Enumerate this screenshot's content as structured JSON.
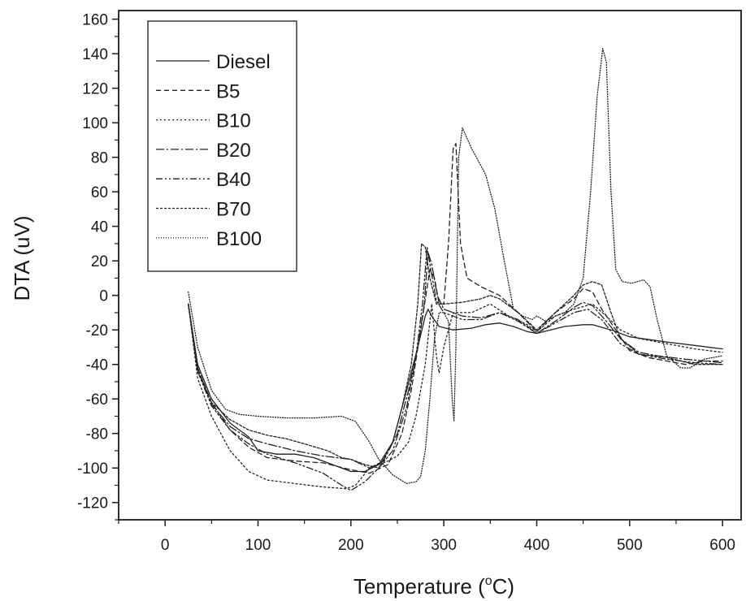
{
  "chart_data": {
    "type": "line",
    "title": "",
    "xlabel": "Temperature (",
    "xlabel_sup": "o",
    "xlabel_end": "C)",
    "ylabel": "DTA (uV)",
    "xlim": [
      -50,
      620
    ],
    "ylim": [
      -130,
      165
    ],
    "xticks": [
      0,
      100,
      200,
      300,
      400,
      500,
      600
    ],
    "yticks": [
      -120,
      -100,
      -80,
      -60,
      -40,
      -20,
      0,
      20,
      40,
      60,
      80,
      100,
      120,
      140,
      160
    ],
    "grid": false,
    "legend_position": "top-left",
    "series": [
      {
        "name": "Diesel",
        "dash": "solid",
        "points": [
          [
            25,
            -5
          ],
          [
            35,
            -40
          ],
          [
            50,
            -60
          ],
          [
            70,
            -74
          ],
          [
            90,
            -82
          ],
          [
            100,
            -90
          ],
          [
            120,
            -92
          ],
          [
            140,
            -92
          ],
          [
            160,
            -94
          ],
          [
            180,
            -98
          ],
          [
            200,
            -102
          ],
          [
            215,
            -102
          ],
          [
            230,
            -98
          ],
          [
            245,
            -85
          ],
          [
            260,
            -55
          ],
          [
            272,
            -30
          ],
          [
            280,
            -12
          ],
          [
            283,
            -8
          ],
          [
            287,
            -12
          ],
          [
            295,
            -18
          ],
          [
            310,
            -20
          ],
          [
            330,
            -19
          ],
          [
            345,
            -17
          ],
          [
            360,
            -16
          ],
          [
            375,
            -18
          ],
          [
            390,
            -21
          ],
          [
            400,
            -22
          ],
          [
            415,
            -20
          ],
          [
            430,
            -18
          ],
          [
            450,
            -17
          ],
          [
            460,
            -17
          ],
          [
            480,
            -20
          ],
          [
            500,
            -24
          ],
          [
            540,
            -27
          ],
          [
            570,
            -29
          ],
          [
            600,
            -31
          ]
        ]
      },
      {
        "name": "B5",
        "dash": "6 4",
        "points": [
          [
            25,
            -5
          ],
          [
            35,
            -42
          ],
          [
            50,
            -62
          ],
          [
            70,
            -78
          ],
          [
            90,
            -88
          ],
          [
            110,
            -94
          ],
          [
            140,
            -96
          ],
          [
            170,
            -97
          ],
          [
            200,
            -101
          ],
          [
            220,
            -103
          ],
          [
            240,
            -98
          ],
          [
            255,
            -80
          ],
          [
            265,
            -55
          ],
          [
            275,
            -20
          ],
          [
            285,
            15
          ],
          [
            290,
            10
          ],
          [
            295,
            -5
          ],
          [
            300,
            -5
          ],
          [
            305,
            30
          ],
          [
            310,
            85
          ],
          [
            313,
            88
          ],
          [
            318,
            30
          ],
          [
            325,
            10
          ],
          [
            340,
            5
          ],
          [
            360,
            0
          ],
          [
            380,
            -10
          ],
          [
            400,
            -21
          ],
          [
            420,
            -10
          ],
          [
            440,
            -2
          ],
          [
            450,
            4
          ],
          [
            460,
            2
          ],
          [
            470,
            -8
          ],
          [
            485,
            -20
          ],
          [
            500,
            -32
          ],
          [
            520,
            -36
          ],
          [
            540,
            -38
          ],
          [
            560,
            -40
          ],
          [
            580,
            -38
          ],
          [
            600,
            -38
          ]
        ]
      },
      {
        "name": "B10",
        "dash": "2 3",
        "points": [
          [
            25,
            -5
          ],
          [
            35,
            -48
          ],
          [
            50,
            -70
          ],
          [
            70,
            -90
          ],
          [
            90,
            -102
          ],
          [
            110,
            -107
          ],
          [
            140,
            -109
          ],
          [
            170,
            -111
          ],
          [
            195,
            -112
          ],
          [
            205,
            -110
          ],
          [
            220,
            -100
          ],
          [
            240,
            -96
          ],
          [
            250,
            -93
          ],
          [
            262,
            -85
          ],
          [
            270,
            -70
          ],
          [
            280,
            -40
          ],
          [
            287,
            -5
          ],
          [
            292,
            -35
          ],
          [
            295,
            -45
          ],
          [
            300,
            -30
          ],
          [
            310,
            -10
          ],
          [
            330,
            -10
          ],
          [
            350,
            -5
          ],
          [
            370,
            -12
          ],
          [
            390,
            -17
          ],
          [
            400,
            -21
          ],
          [
            420,
            -12
          ],
          [
            440,
            -8
          ],
          [
            460,
            -5
          ],
          [
            475,
            -12
          ],
          [
            490,
            -20
          ],
          [
            510,
            -25
          ],
          [
            540,
            -28
          ],
          [
            570,
            -31
          ],
          [
            600,
            -33
          ]
        ]
      },
      {
        "name": "B20",
        "dash": "10 3 2 3",
        "points": [
          [
            25,
            -5
          ],
          [
            35,
            -42
          ],
          [
            50,
            -63
          ],
          [
            70,
            -76
          ],
          [
            90,
            -83
          ],
          [
            110,
            -86
          ],
          [
            140,
            -90
          ],
          [
            170,
            -93
          ],
          [
            200,
            -95
          ],
          [
            220,
            -100
          ],
          [
            235,
            -96
          ],
          [
            250,
            -80
          ],
          [
            262,
            -55
          ],
          [
            272,
            -30
          ],
          [
            279,
            -5
          ],
          [
            283,
            25
          ],
          [
            287,
            18
          ],
          [
            293,
            0
          ],
          [
            300,
            -8
          ],
          [
            320,
            -12
          ],
          [
            340,
            -13
          ],
          [
            360,
            -10
          ],
          [
            380,
            -14
          ],
          [
            400,
            -22
          ],
          [
            420,
            -15
          ],
          [
            440,
            -7
          ],
          [
            450,
            -4
          ],
          [
            460,
            -6
          ],
          [
            475,
            -15
          ],
          [
            490,
            -25
          ],
          [
            510,
            -33
          ],
          [
            530,
            -35
          ],
          [
            560,
            -37
          ],
          [
            600,
            -39
          ]
        ]
      },
      {
        "name": "B40",
        "dash": "8 3 2 3 2 3",
        "points": [
          [
            25,
            -5
          ],
          [
            35,
            -44
          ],
          [
            50,
            -64
          ],
          [
            70,
            -78
          ],
          [
            90,
            -86
          ],
          [
            110,
            -92
          ],
          [
            140,
            -97
          ],
          [
            170,
            -103
          ],
          [
            190,
            -110
          ],
          [
            200,
            -113
          ],
          [
            215,
            -108
          ],
          [
            230,
            -100
          ],
          [
            245,
            -90
          ],
          [
            260,
            -65
          ],
          [
            270,
            -35
          ],
          [
            277,
            -5
          ],
          [
            282,
            28
          ],
          [
            286,
            15
          ],
          [
            292,
            -3
          ],
          [
            300,
            -10
          ],
          [
            320,
            -14
          ],
          [
            340,
            -14
          ],
          [
            360,
            -10
          ],
          [
            380,
            -15
          ],
          [
            400,
            -22
          ],
          [
            420,
            -16
          ],
          [
            440,
            -10
          ],
          [
            455,
            -8
          ],
          [
            470,
            -14
          ],
          [
            490,
            -28
          ],
          [
            510,
            -34
          ],
          [
            540,
            -37
          ],
          [
            570,
            -39
          ],
          [
            600,
            -40
          ]
        ]
      },
      {
        "name": "B70",
        "dash": "3 2",
        "points": [
          [
            25,
            -5
          ],
          [
            35,
            -44
          ],
          [
            50,
            -62
          ],
          [
            70,
            -72
          ],
          [
            90,
            -78
          ],
          [
            110,
            -81
          ],
          [
            130,
            -83
          ],
          [
            150,
            -86
          ],
          [
            175,
            -90
          ],
          [
            190,
            -94
          ],
          [
            200,
            -95
          ],
          [
            215,
            -98
          ],
          [
            230,
            -100
          ],
          [
            245,
            -85
          ],
          [
            255,
            -65
          ],
          [
            265,
            -40
          ],
          [
            272,
            -5
          ],
          [
            276,
            30
          ],
          [
            280,
            28
          ],
          [
            285,
            10
          ],
          [
            292,
            -5
          ],
          [
            300,
            -5
          ],
          [
            320,
            -4
          ],
          [
            340,
            -2
          ],
          [
            350,
            0
          ],
          [
            360,
            -2
          ],
          [
            380,
            -10
          ],
          [
            400,
            -20
          ],
          [
            420,
            -10
          ],
          [
            440,
            0
          ],
          [
            450,
            6
          ],
          [
            460,
            8
          ],
          [
            470,
            6
          ],
          [
            480,
            -10
          ],
          [
            490,
            -25
          ],
          [
            510,
            -34
          ],
          [
            540,
            -36
          ],
          [
            570,
            -40
          ],
          [
            600,
            -40
          ]
        ]
      },
      {
        "name": "B100",
        "dash": "1 2",
        "points": [
          [
            25,
            2
          ],
          [
            35,
            -30
          ],
          [
            50,
            -55
          ],
          [
            65,
            -66
          ],
          [
            80,
            -69
          ],
          [
            100,
            -70
          ],
          [
            130,
            -71
          ],
          [
            160,
            -71
          ],
          [
            190,
            -70
          ],
          [
            205,
            -73
          ],
          [
            220,
            -85
          ],
          [
            230,
            -95
          ],
          [
            245,
            -104
          ],
          [
            260,
            -109
          ],
          [
            270,
            -108
          ],
          [
            275,
            -105
          ],
          [
            280,
            -90
          ],
          [
            285,
            -60
          ],
          [
            290,
            -25
          ],
          [
            295,
            -10
          ],
          [
            300,
            -10
          ],
          [
            305,
            -15
          ],
          [
            309,
            -60
          ],
          [
            311,
            -73
          ],
          [
            313,
            -30
          ],
          [
            316,
            80
          ],
          [
            320,
            97
          ],
          [
            330,
            85
          ],
          [
            345,
            70
          ],
          [
            355,
            50
          ],
          [
            365,
            20
          ],
          [
            375,
            -8
          ],
          [
            385,
            -12
          ],
          [
            395,
            -14
          ],
          [
            400,
            -12
          ],
          [
            410,
            -15
          ],
          [
            420,
            -12
          ],
          [
            430,
            -10
          ],
          [
            440,
            -5
          ],
          [
            450,
            10
          ],
          [
            458,
            60
          ],
          [
            465,
            115
          ],
          [
            471,
            143
          ],
          [
            475,
            135
          ],
          [
            480,
            60
          ],
          [
            485,
            15
          ],
          [
            492,
            8
          ],
          [
            502,
            7
          ],
          [
            515,
            9
          ],
          [
            522,
            5
          ],
          [
            530,
            -15
          ],
          [
            540,
            -35
          ],
          [
            555,
            -42
          ],
          [
            565,
            -42
          ],
          [
            580,
            -37
          ],
          [
            600,
            -35
          ]
        ]
      }
    ]
  }
}
